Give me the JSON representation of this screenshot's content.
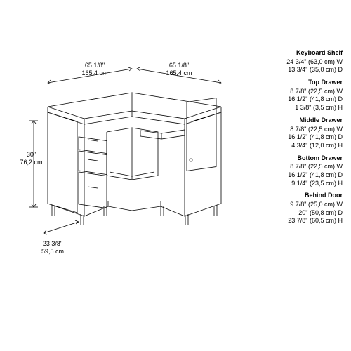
{
  "dimensions": {
    "width_top_left": {
      "imperial": "65 1/8\"",
      "metric": "165,4 cm"
    },
    "width_top_right": {
      "imperial": "65 1/8\"",
      "metric": "165,4 cm"
    },
    "height": {
      "imperial": "30\"",
      "metric": "76,2 cm"
    },
    "depth": {
      "imperial": "23 3/8\"",
      "metric": "59,5 cm"
    }
  },
  "specs": [
    {
      "title": "Keyboard Shelf",
      "lines": [
        "24 3/4\" (63,0 cm) W",
        "13 3/4\" (35,0 cm) D"
      ]
    },
    {
      "title": "Top Drawer",
      "lines": [
        "8 7/8\" (22,5 cm) W",
        "16 1/2\" (41,8 cm) D",
        "1 3/8\" (3,5 cm) H"
      ]
    },
    {
      "title": "Middle Drawer",
      "lines": [
        "8 7/8\" (22,5 cm) W",
        "16 1/2\" (41,8 cm) D",
        "4 3/4\" (12,0 cm) H"
      ]
    },
    {
      "title": "Bottom Drawer",
      "lines": [
        "8 7/8\" (22,5 cm) W",
        "16 1/2\" (41,8 cm) D",
        "9 1/4\" (23,5 cm) H"
      ]
    },
    {
      "title": "Behind Door",
      "lines": [
        "9 7/8\" (25,0 cm) W",
        "20\" (50,8 cm) D",
        "23 7/8\" (60,5 cm) H"
      ]
    }
  ],
  "styling": {
    "line_color": "#000000",
    "background": "#ffffff",
    "font_size_labels": 9,
    "font_size_specs": 9,
    "stroke_width": 0.8
  }
}
